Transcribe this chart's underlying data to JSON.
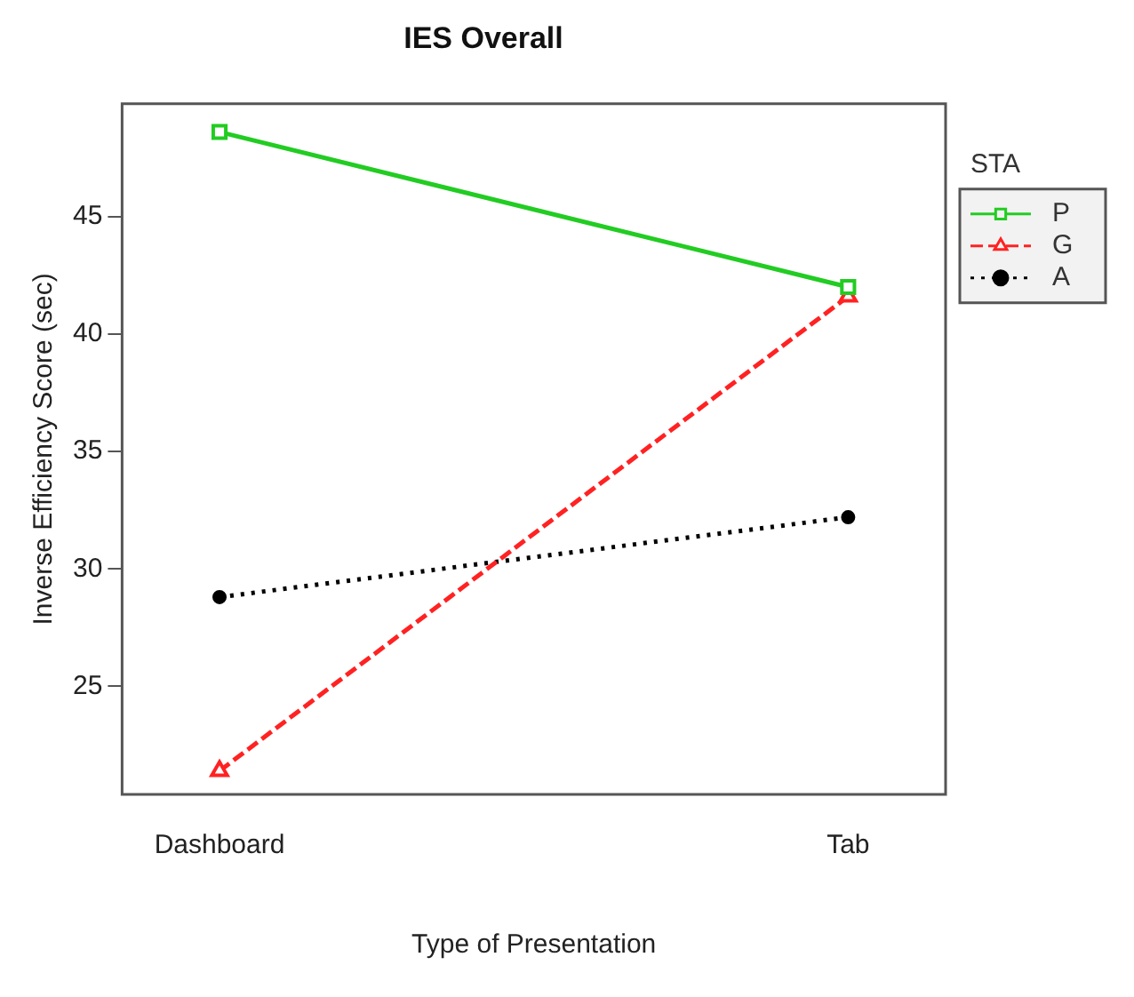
{
  "chart_data": {
    "type": "line",
    "title": "IES Overall",
    "xlabel": "Type of Presentation",
    "ylabel": "Inverse Efficiency Score (sec)",
    "legend_title": "STA",
    "legend": "top right",
    "grid": false,
    "categories": [
      "Dashboard",
      "Tab"
    ],
    "ylim": [
      20.4,
      49.8
    ],
    "yticks": [
      25,
      30,
      35,
      40,
      45
    ],
    "series": [
      {
        "name": "P",
        "color": "#22cc22",
        "values": [
          48.6,
          42.0
        ],
        "marker": "square",
        "line_style": "solid"
      },
      {
        "name": "G",
        "color": "#ff2222",
        "values": [
          21.4,
          41.6
        ],
        "marker": "triangle",
        "line_style": "dashed"
      },
      {
        "name": "A",
        "color": "#000000",
        "values": [
          28.8,
          32.2
        ],
        "marker": "circle",
        "line_style": "dotted"
      }
    ]
  }
}
